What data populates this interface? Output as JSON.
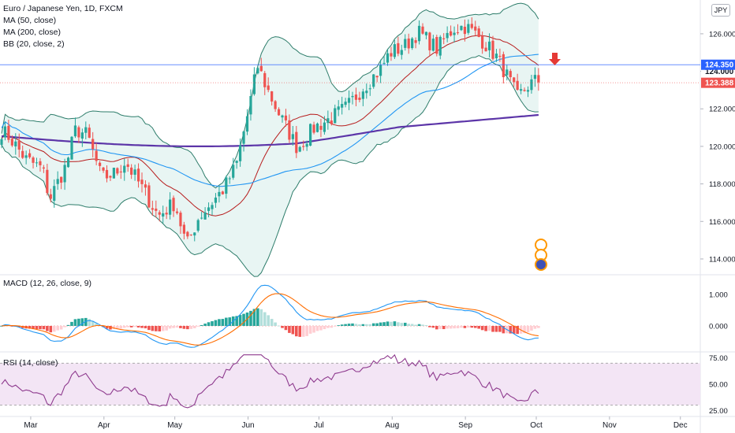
{
  "legend": {
    "title": "Euro / Japanese Yen, 1D, FXCM",
    "ma50": "MA (50, close)",
    "ma200": "MA (200, close)",
    "bb": "BB (20, close, 2)"
  },
  "macd_title": "MACD (12, 26, close, 9)",
  "rsi_title": "RSI (14, close)",
  "currency": "JPY",
  "tags": {
    "level": "124.350",
    "last": "123.388",
    "hidden": "124.000"
  },
  "colors": {
    "up": "#26a69a",
    "down": "#ef5350",
    "ma50": "#2196f3",
    "ma200": "#5c35a8",
    "bb_basis": "#b71c1c",
    "bb_band": "#2e7d6b",
    "bb_fill": "#e0f2ef",
    "level_line": "#2962ff",
    "rsi_line": "#8e3a8e",
    "rsi_bg": "#f3e5f5",
    "macd_line": "#2196f3",
    "signal_line": "#ff6d00"
  },
  "chart_data": [
    {
      "type": "candlestick",
      "pane": "price",
      "title": "Euro / Japanese Yen, 1D, FXCM",
      "y_ticks": [
        "126.000",
        "124.000",
        "122.000",
        "120.000",
        "118.000",
        "116.000",
        "114.000"
      ],
      "ylim": [
        113.2,
        127.8
      ],
      "x_ticks": [
        "Mar",
        "Apr",
        "May",
        "Jun",
        "Jul",
        "Aug",
        "Sep",
        "Oct",
        "Nov",
        "Dec"
      ],
      "series": [
        {
          "name": "MA (50, close)",
          "shape": "smooth line"
        },
        {
          "name": "MA (200, close)",
          "shape": "smooth line"
        },
        {
          "name": "BB (20, close, 2)",
          "shape": "band"
        }
      ],
      "close_path": [
        {
          "date": "2020-02-17",
          "close": 120.9
        },
        {
          "date": "2020-02-21",
          "close": 120.5
        },
        {
          "date": "2020-02-28",
          "close": 119.3
        },
        {
          "date": "2020-03-06",
          "close": 118.8
        },
        {
          "date": "2020-03-09",
          "close": 117.2
        },
        {
          "date": "2020-03-16",
          "close": 119.0
        },
        {
          "date": "2020-03-20",
          "close": 120.9
        },
        {
          "date": "2020-03-25",
          "close": 120.6
        },
        {
          "date": "2020-03-31",
          "close": 118.3
        },
        {
          "date": "2020-04-06",
          "close": 118.6
        },
        {
          "date": "2020-04-10",
          "close": 119.2
        },
        {
          "date": "2020-04-17",
          "close": 117.8
        },
        {
          "date": "2020-04-24",
          "close": 116.3
        },
        {
          "date": "2020-05-01",
          "close": 117.0
        },
        {
          "date": "2020-05-06",
          "close": 114.7
        },
        {
          "date": "2020-05-11",
          "close": 116.2
        },
        {
          "date": "2020-05-18",
          "close": 117.2
        },
        {
          "date": "2020-05-22",
          "close": 117.8
        },
        {
          "date": "2020-05-27",
          "close": 119.0
        },
        {
          "date": "2020-06-01",
          "close": 121.8
        },
        {
          "date": "2020-06-05",
          "close": 124.3
        },
        {
          "date": "2020-06-10",
          "close": 122.8
        },
        {
          "date": "2020-06-15",
          "close": 121.5
        },
        {
          "date": "2020-06-22",
          "close": 119.9
        },
        {
          "date": "2020-06-29",
          "close": 121.0
        },
        {
          "date": "2020-07-06",
          "close": 121.5
        },
        {
          "date": "2020-07-13",
          "close": 122.1
        },
        {
          "date": "2020-07-20",
          "close": 123.2
        },
        {
          "date": "2020-07-27",
          "close": 124.1
        },
        {
          "date": "2020-07-31",
          "close": 125.0
        },
        {
          "date": "2020-08-06",
          "close": 125.3
        },
        {
          "date": "2020-08-12",
          "close": 126.1
        },
        {
          "date": "2020-08-20",
          "close": 125.2
        },
        {
          "date": "2020-08-27",
          "close": 126.3
        },
        {
          "date": "2020-09-01",
          "close": 126.4
        },
        {
          "date": "2020-09-07",
          "close": 125.8
        },
        {
          "date": "2020-09-14",
          "close": 124.8
        },
        {
          "date": "2020-09-18",
          "close": 123.9
        },
        {
          "date": "2020-09-23",
          "close": 122.6
        },
        {
          "date": "2020-09-28",
          "close": 123.3
        },
        {
          "date": "2020-10-01",
          "close": 123.5
        }
      ]
    },
    {
      "type": "bar",
      "pane": "macd",
      "title": "MACD (12, 26, close, 9)",
      "y_ticks": [
        "1.000",
        "0.000"
      ],
      "ylim": [
        -0.8,
        1.6
      ]
    },
    {
      "type": "line",
      "pane": "rsi",
      "title": "RSI (14, close)",
      "y_ticks": [
        "75.00",
        "50.00",
        "25.00"
      ],
      "ylim": [
        20,
        80
      ]
    }
  ]
}
